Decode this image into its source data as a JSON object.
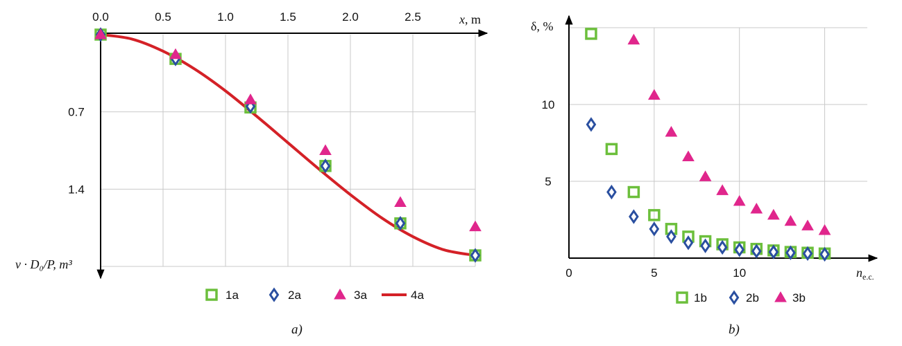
{
  "colors": {
    "green": "#6cbf3c",
    "blue": "#2a4fa0",
    "magenta": "#e0268c",
    "red": "#d42127"
  },
  "chart_data": [
    {
      "type": "scatter",
      "caption": "a)",
      "xlabel_var": "x",
      "xlabel_unit": ", m",
      "ylabel_text": "v · D₀/P, m³",
      "x_ticks": [
        "0.0",
        "0.5",
        "1.0",
        "1.5",
        "2.0",
        "2.5"
      ],
      "y_ticks": [
        "0.7",
        "1.4"
      ],
      "xlim": [
        0,
        3.0
      ],
      "ylim": [
        0,
        2.1
      ],
      "y_inverted": true,
      "grid": true,
      "legend_position": "bottom",
      "series": [
        {
          "name": "1a",
          "marker": "square",
          "color": "#6cbf3c",
          "x": [
            0,
            0.6,
            1.2,
            1.8,
            2.4,
            3.0
          ],
          "y": [
            0.0,
            0.22,
            0.66,
            1.19,
            1.71,
            2.0
          ]
        },
        {
          "name": "2a",
          "marker": "diamond",
          "color": "#2a4fa0",
          "x": [
            0,
            0.6,
            1.2,
            1.8,
            2.4,
            3.0
          ],
          "y": [
            0.0,
            0.22,
            0.65,
            1.19,
            1.71,
            2.0
          ]
        },
        {
          "name": "3a",
          "marker": "triangle",
          "color": "#e0268c",
          "x": [
            0,
            0.6,
            1.2,
            1.8,
            2.4,
            3.0
          ],
          "y": [
            0.0,
            0.18,
            0.59,
            1.05,
            1.52,
            1.74
          ]
        },
        {
          "name": "4a",
          "marker": "line",
          "color": "#d42127",
          "x": [
            0,
            0.25,
            0.5,
            0.75,
            1.0,
            1.25,
            1.5,
            1.75,
            2.0,
            2.25,
            2.5,
            2.75,
            3.0
          ],
          "y": [
            0.0,
            0.04,
            0.15,
            0.31,
            0.51,
            0.74,
            0.98,
            1.22,
            1.45,
            1.66,
            1.83,
            1.95,
            2.0
          ]
        }
      ]
    },
    {
      "type": "scatter",
      "caption": "b)",
      "ylabel_text": "δ, %",
      "xlabel_var": "n",
      "xlabel_sub": "e.c.",
      "x_ticks": [
        "0",
        "5",
        "10"
      ],
      "x_tick_values": [
        0,
        5,
        10
      ],
      "y_ticks": [
        "5",
        "10"
      ],
      "y_tick_values": [
        5,
        10
      ],
      "xlim": [
        0,
        17.5
      ],
      "ylim": [
        0,
        15
      ],
      "grid": true,
      "legend_position": "bottom",
      "series": [
        {
          "name": "1b",
          "marker": "square",
          "color": "#6cbf3c",
          "x": [
            1.3,
            2.5,
            3.8,
            5,
            6,
            7,
            8,
            9,
            10,
            11,
            12,
            13,
            14,
            15
          ],
          "y": [
            14.6,
            7.1,
            4.3,
            2.8,
            1.9,
            1.4,
            1.1,
            0.9,
            0.7,
            0.6,
            0.5,
            0.4,
            0.35,
            0.3
          ]
        },
        {
          "name": "2b",
          "marker": "diamond",
          "color": "#2a4fa0",
          "x": [
            1.3,
            2.5,
            3.8,
            5,
            6,
            7,
            8,
            9,
            10,
            11,
            12,
            13,
            14,
            15
          ],
          "y": [
            8.7,
            4.3,
            2.7,
            1.9,
            1.4,
            1.0,
            0.8,
            0.7,
            0.55,
            0.45,
            0.4,
            0.35,
            0.3,
            0.25
          ]
        },
        {
          "name": "3b",
          "marker": "triangle",
          "color": "#e0268c",
          "x": [
            3.8,
            5,
            6,
            7,
            8,
            9,
            10,
            11,
            12,
            13,
            14,
            15
          ],
          "y": [
            14.2,
            10.6,
            8.2,
            6.6,
            5.3,
            4.4,
            3.7,
            3.2,
            2.8,
            2.4,
            2.1,
            1.8
          ]
        }
      ]
    }
  ]
}
